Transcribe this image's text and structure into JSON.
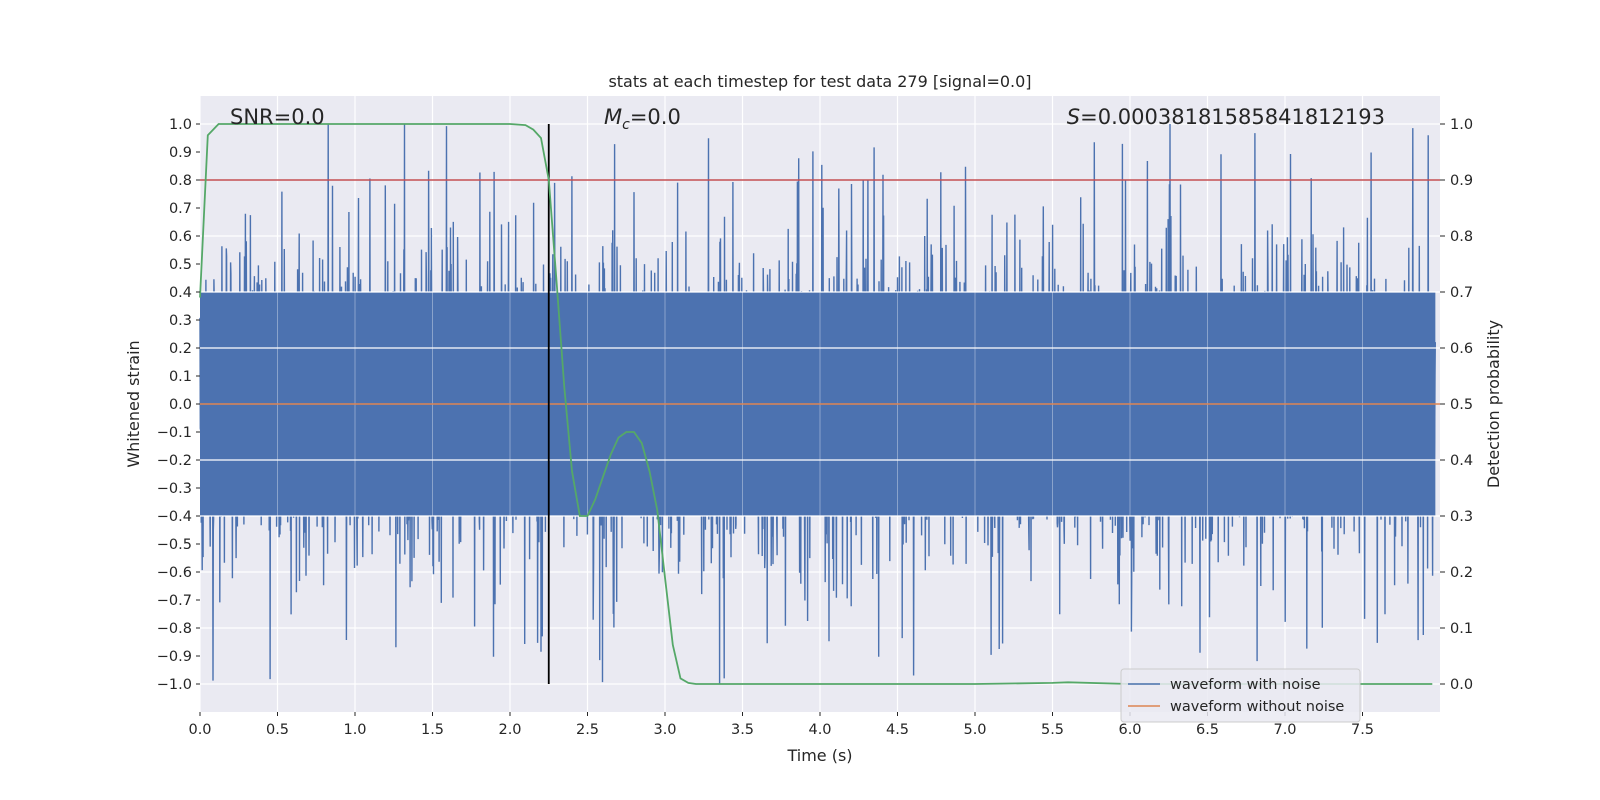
{
  "chart_data": {
    "type": "line",
    "title": "stats at each timestep for test data 279 [signal=0.0]",
    "xlabel": "Time (s)",
    "ylabel": "Whitened strain",
    "y2label": "Detection probability",
    "xlim": [
      0.0,
      8.0
    ],
    "ylim": [
      -1.1,
      1.1
    ],
    "y2lim": [
      -0.05,
      1.05
    ],
    "x_ticks": [
      "0.0",
      "0.5",
      "1.0",
      "1.5",
      "2.0",
      "2.5",
      "3.0",
      "3.5",
      "4.0",
      "4.5",
      "5.0",
      "5.5",
      "6.0",
      "6.5",
      "7.0",
      "7.5"
    ],
    "y_ticks": [
      "1.0",
      "0.9",
      "0.8",
      "0.7",
      "0.6",
      "0.5",
      "0.4",
      "0.3",
      "0.2",
      "0.1",
      "0.0",
      "−0.1",
      "−0.2",
      "−0.3",
      "−0.4",
      "−0.5",
      "−0.6",
      "−0.7",
      "−0.8",
      "−0.9",
      "−1.0"
    ],
    "y2_ticks": [
      "1.0",
      "0.9",
      "0.8",
      "0.7",
      "0.6",
      "0.5",
      "0.4",
      "0.3",
      "0.2",
      "0.1",
      "0.0"
    ],
    "grid": true,
    "legend_position": "bottom-right",
    "annotations": {
      "snr": "SNR=0.0",
      "mc_symbol": "M",
      "mc_sub": "c",
      "mc_value": "=0.0",
      "s_symbol": "S",
      "s_value": "=0.00038181585841812193"
    },
    "markers": {
      "vertical_line_x": 2.25,
      "threshold_probability": 0.9
    },
    "series": [
      {
        "name": "waveform with noise",
        "axis": "left",
        "color": "#4c72b0",
        "description": "dense noise trace, mostly within about -0.6 to 0.6, extremes near ±1.0"
      },
      {
        "name": "waveform without noise",
        "axis": "left",
        "color": "#dd8452",
        "x": [
          0.0,
          8.0
        ],
        "y": [
          0.0,
          0.0
        ]
      },
      {
        "name": "detection probability",
        "axis": "right",
        "color": "#55a868",
        "x": [
          0.0,
          0.05,
          0.12,
          0.2,
          0.5,
          1.0,
          1.5,
          2.0,
          2.1,
          2.15,
          2.2,
          2.25,
          2.3,
          2.35,
          2.4,
          2.45,
          2.5,
          2.55,
          2.6,
          2.65,
          2.7,
          2.75,
          2.8,
          2.85,
          2.9,
          2.95,
          3.0,
          3.05,
          3.1,
          3.15,
          3.2,
          3.5,
          4.0,
          4.5,
          5.0,
          5.5,
          5.6,
          6.0,
          6.5,
          7.0,
          7.5,
          7.95
        ],
        "y": [
          0.69,
          0.98,
          1.0,
          1.0,
          1.0,
          1.0,
          1.0,
          1.0,
          0.998,
          0.99,
          0.975,
          0.9,
          0.72,
          0.53,
          0.38,
          0.3,
          0.3,
          0.33,
          0.37,
          0.41,
          0.44,
          0.45,
          0.45,
          0.43,
          0.38,
          0.31,
          0.19,
          0.07,
          0.01,
          0.002,
          0.0,
          0.0,
          0.0,
          0.0,
          0.0,
          0.002,
          0.003,
          0.0,
          0.0,
          0.0,
          0.0,
          0.0
        ]
      },
      {
        "name": "detection threshold",
        "axis": "right",
        "color": "#c44e52",
        "x": [
          0.0,
          8.0
        ],
        "y": [
          0.9,
          0.9
        ]
      }
    ],
    "legend": [
      "waveform with noise",
      "waveform without noise"
    ]
  }
}
